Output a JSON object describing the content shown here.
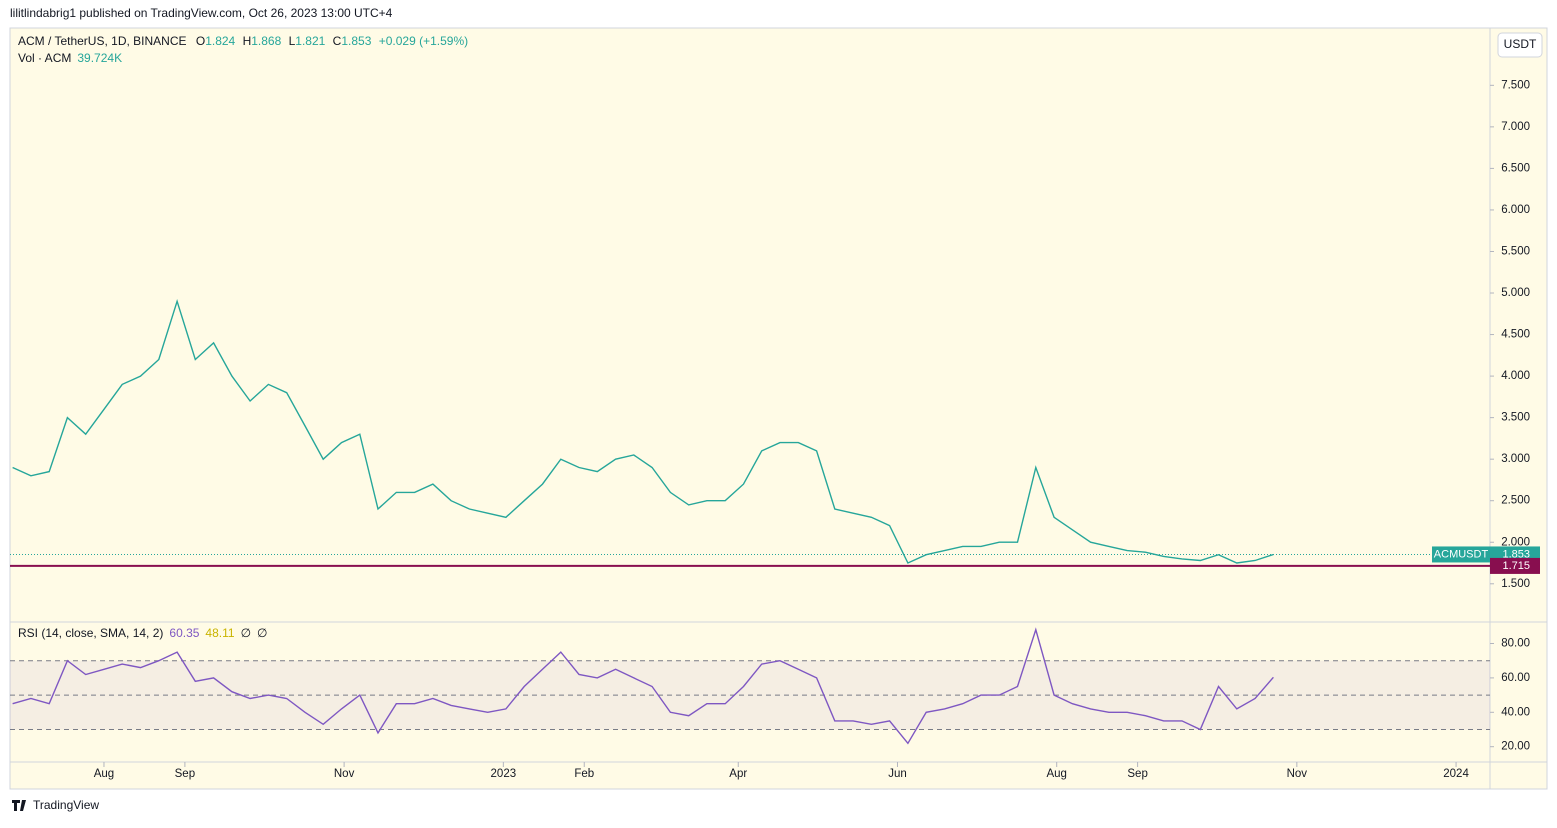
{
  "header": {
    "publisher": "lilitlindabrig1 published on TradingView.com, Oct 26, 2023 13:00 UTC+4"
  },
  "legend": {
    "symbol": "ACM / TetherUS, 1D, BINANCE",
    "o_label": "O",
    "open": "1.824",
    "h_label": "H",
    "high": "1.868",
    "l_label": "L",
    "low": "1.821",
    "c_label": "C",
    "close": "1.853",
    "change": "+0.029 (+1.59%)",
    "vol_label": "Vol · ACM",
    "vol": "39.724K"
  },
  "currency_button": "USDT",
  "rsi_legend": {
    "label": "RSI (14, close, SMA, 14, 2)",
    "rsi": "60.35",
    "sma": "48.11",
    "a": "∅",
    "b": "∅"
  },
  "footer": {
    "brand": "TradingView"
  },
  "chart_data": [
    {
      "type": "line",
      "xlim": [
        "2022-06-26",
        "2024-01-14"
      ],
      "ylim": [
        1.04,
        8.19
      ],
      "yticks": [
        {
          "value": 7.5,
          "label": "7.500"
        },
        {
          "value": 7,
          "label": "7.000"
        },
        {
          "value": 6.5,
          "label": "6.500"
        },
        {
          "value": 6,
          "label": "6.000"
        },
        {
          "value": 5.5,
          "label": "5.500"
        },
        {
          "value": 5,
          "label": "5.000"
        },
        {
          "value": 4.5,
          "label": "4.500"
        },
        {
          "value": 4,
          "label": "4.000"
        },
        {
          "value": 3.5,
          "label": "3.500"
        },
        {
          "value": 3,
          "label": "3.000"
        },
        {
          "value": 2.5,
          "label": "2.500"
        },
        {
          "value": 2,
          "label": "2.000"
        },
        {
          "value": 1.5,
          "label": "1.500"
        }
      ],
      "xticks": [
        {
          "value": "2022-08-01",
          "label": "Aug"
        },
        {
          "value": "2022-09-01",
          "label": "Sep"
        },
        {
          "value": "2022-11-01",
          "label": "Nov"
        },
        {
          "value": "2023-01-01",
          "label": "2023"
        },
        {
          "value": "2023-02-01",
          "label": "Feb"
        },
        {
          "value": "2023-04-01",
          "label": "Apr"
        },
        {
          "value": "2023-06-01",
          "label": "Jun"
        },
        {
          "value": "2023-08-01",
          "label": "Aug"
        },
        {
          "value": "2023-09-01",
          "label": "Sep"
        },
        {
          "value": "2023-11-01",
          "label": "Nov"
        },
        {
          "value": "2024-01-01",
          "label": "2024"
        }
      ],
      "x": [
        "2022-06-27",
        "2022-07-04",
        "2022-07-11",
        "2022-07-18",
        "2022-07-25",
        "2022-08-01",
        "2022-08-08",
        "2022-08-15",
        "2022-08-22",
        "2022-08-29",
        "2022-09-05",
        "2022-09-12",
        "2022-09-19",
        "2022-09-26",
        "2022-10-03",
        "2022-10-10",
        "2022-10-17",
        "2022-10-24",
        "2022-10-31",
        "2022-11-07",
        "2022-11-14",
        "2022-11-21",
        "2022-11-28",
        "2022-12-05",
        "2022-12-12",
        "2022-12-19",
        "2022-12-26",
        "2023-01-02",
        "2023-01-09",
        "2023-01-16",
        "2023-01-23",
        "2023-01-30",
        "2023-02-06",
        "2023-02-13",
        "2023-02-20",
        "2023-02-27",
        "2023-03-06",
        "2023-03-13",
        "2023-03-20",
        "2023-03-27",
        "2023-04-03",
        "2023-04-10",
        "2023-04-17",
        "2023-04-24",
        "2023-05-01",
        "2023-05-08",
        "2023-05-15",
        "2023-05-22",
        "2023-05-29",
        "2023-06-05",
        "2023-06-12",
        "2023-06-19",
        "2023-06-26",
        "2023-07-03",
        "2023-07-10",
        "2023-07-17",
        "2023-07-24",
        "2023-07-31",
        "2023-08-07",
        "2023-08-14",
        "2023-08-21",
        "2023-08-28",
        "2023-09-04",
        "2023-09-11",
        "2023-09-18",
        "2023-09-25",
        "2023-10-02",
        "2023-10-09",
        "2023-10-16",
        "2023-10-23"
      ],
      "series": [
        {
          "name": "ACMUSDT",
          "color": "#26a69a",
          "last_label": "1.853",
          "values": [
            2.9,
            2.8,
            2.85,
            3.5,
            3.3,
            3.6,
            3.9,
            4.0,
            4.2,
            4.9,
            4.2,
            4.4,
            4.0,
            3.7,
            3.9,
            3.8,
            3.4,
            3.0,
            3.2,
            3.3,
            2.4,
            2.6,
            2.6,
            2.7,
            2.5,
            2.4,
            2.35,
            2.3,
            2.5,
            2.7,
            3.0,
            2.9,
            2.85,
            3.0,
            3.05,
            2.9,
            2.6,
            2.45,
            2.5,
            2.5,
            2.7,
            3.1,
            3.2,
            3.2,
            3.1,
            2.4,
            2.35,
            2.3,
            2.2,
            1.75,
            1.85,
            1.9,
            1.95,
            1.95,
            2.0,
            2.0,
            2.9,
            2.3,
            2.15,
            2.0,
            1.95,
            1.9,
            1.88,
            1.83,
            1.8,
            1.78,
            1.85,
            1.75,
            1.78,
            1.853
          ]
        }
      ],
      "hline": {
        "value": 1.715,
        "label": "1.715",
        "color": "#880e4f"
      }
    },
    {
      "type": "line",
      "ylim": [
        11.1,
        92.5
      ],
      "yticks": [
        {
          "value": 80,
          "label": "80.00"
        },
        {
          "value": 60,
          "label": "60.00"
        },
        {
          "value": 40,
          "label": "40.00"
        },
        {
          "value": 20,
          "label": "20.00"
        }
      ],
      "levels": [
        70,
        50,
        30
      ],
      "series": [
        {
          "name": "RSI",
          "color": "#7e57c2",
          "values": [
            45,
            48,
            45,
            70,
            62,
            65,
            68,
            66,
            70,
            75,
            58,
            60,
            52,
            48,
            50,
            48,
            40,
            33,
            42,
            50,
            28,
            45,
            45,
            48,
            44,
            42,
            40,
            42,
            55,
            65,
            75,
            62,
            60,
            65,
            60,
            55,
            40,
            38,
            45,
            45,
            55,
            68,
            70,
            65,
            60,
            35,
            35,
            33,
            35,
            22,
            40,
            42,
            45,
            50,
            50,
            55,
            88,
            50,
            45,
            42,
            40,
            40,
            38,
            35,
            35,
            30,
            55,
            42,
            48,
            60.35
          ]
        }
      ]
    }
  ]
}
